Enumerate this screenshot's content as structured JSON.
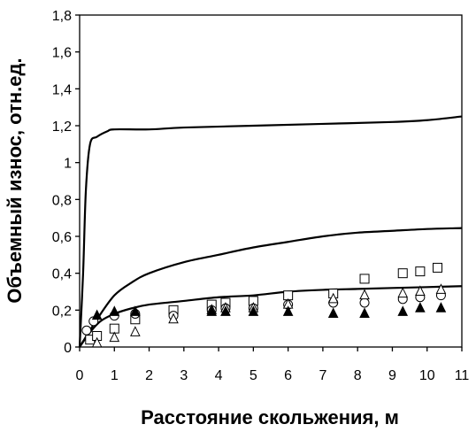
{
  "chart_data": {
    "type": "scatter",
    "xlabel": "Расстояние скольжения, м",
    "ylabel": "Объемный износ, отн.ед.",
    "xlim": [
      0,
      11
    ],
    "ylim": [
      0,
      1.8
    ],
    "x_ticks": [
      "0",
      "1",
      "2",
      "3",
      "4",
      "5",
      "6",
      "7",
      "8",
      "9",
      "10",
      "11"
    ],
    "y_ticks": [
      "0",
      "0,2",
      "0,4",
      "0,6",
      "0,8",
      "1",
      "1,2",
      "1,4",
      "1,6",
      "1,8"
    ],
    "grid": false,
    "legend": false,
    "series": [
      {
        "kind": "line",
        "points": [
          [
            0,
            0
          ],
          [
            0.1,
            0.4
          ],
          [
            0.18,
            0.85
          ],
          [
            0.3,
            1.1
          ],
          [
            0.5,
            1.14
          ],
          [
            0.8,
            1.17
          ],
          [
            1,
            1.18
          ],
          [
            2,
            1.18
          ],
          [
            3,
            1.19
          ],
          [
            5,
            1.2
          ],
          [
            7,
            1.21
          ],
          [
            9,
            1.22
          ],
          [
            10,
            1.23
          ],
          [
            11,
            1.25
          ]
        ]
      },
      {
        "kind": "line",
        "points": [
          [
            0,
            0
          ],
          [
            0.5,
            0.15
          ],
          [
            1,
            0.28
          ],
          [
            1.5,
            0.35
          ],
          [
            2,
            0.4
          ],
          [
            3,
            0.46
          ],
          [
            4,
            0.5
          ],
          [
            5,
            0.54
          ],
          [
            6,
            0.57
          ],
          [
            7,
            0.6
          ],
          [
            8,
            0.62
          ],
          [
            9,
            0.63
          ],
          [
            10,
            0.64
          ],
          [
            11,
            0.645
          ]
        ]
      },
      {
        "kind": "line",
        "points": [
          [
            0,
            0
          ],
          [
            0.3,
            0.08
          ],
          [
            0.6,
            0.14
          ],
          [
            1,
            0.18
          ],
          [
            1.5,
            0.21
          ],
          [
            2,
            0.23
          ],
          [
            3,
            0.25
          ],
          [
            4,
            0.27
          ],
          [
            5,
            0.28
          ],
          [
            6,
            0.3
          ],
          [
            7,
            0.31
          ],
          [
            8,
            0.315
          ],
          [
            9,
            0.32
          ],
          [
            10,
            0.325
          ],
          [
            11,
            0.33
          ]
        ]
      },
      {
        "kind": "markers",
        "marker": "square-open",
        "points": [
          [
            0.3,
            0.04
          ],
          [
            0.5,
            0.06
          ],
          [
            1,
            0.1
          ],
          [
            1.6,
            0.15
          ],
          [
            2.7,
            0.2
          ],
          [
            3.8,
            0.23
          ],
          [
            4.2,
            0.24
          ],
          [
            5,
            0.25
          ],
          [
            6,
            0.28
          ],
          [
            7.3,
            0.29
          ],
          [
            8.2,
            0.37
          ],
          [
            9.3,
            0.4
          ],
          [
            9.8,
            0.41
          ],
          [
            10.3,
            0.43
          ]
        ]
      },
      {
        "kind": "markers",
        "marker": "circle-open",
        "points": [
          [
            0.2,
            0.09
          ],
          [
            0.4,
            0.14
          ],
          [
            1,
            0.17
          ],
          [
            1.6,
            0.18
          ],
          [
            2.7,
            0.17
          ],
          [
            3.8,
            0.2
          ],
          [
            4.2,
            0.21
          ],
          [
            5,
            0.21
          ],
          [
            6,
            0.23
          ],
          [
            7.3,
            0.24
          ],
          [
            8.2,
            0.24
          ],
          [
            9.3,
            0.26
          ],
          [
            9.8,
            0.27
          ],
          [
            10.4,
            0.28
          ]
        ]
      },
      {
        "kind": "markers",
        "marker": "triangle-open",
        "points": [
          [
            0.5,
            0.02
          ],
          [
            1,
            0.05
          ],
          [
            1.6,
            0.08
          ],
          [
            2.7,
            0.15
          ],
          [
            3.8,
            0.2
          ],
          [
            4.2,
            0.21
          ],
          [
            5,
            0.21
          ],
          [
            6,
            0.23
          ],
          [
            7.3,
            0.26
          ],
          [
            8.2,
            0.28
          ],
          [
            9.3,
            0.29
          ],
          [
            9.8,
            0.3
          ],
          [
            10.4,
            0.31
          ]
        ]
      },
      {
        "kind": "markers",
        "marker": "triangle-filled",
        "points": [
          [
            0.5,
            0.17
          ],
          [
            1,
            0.19
          ],
          [
            1.6,
            0.19
          ],
          [
            3.8,
            0.19
          ],
          [
            4.2,
            0.19
          ],
          [
            5,
            0.19
          ],
          [
            6,
            0.19
          ],
          [
            7.3,
            0.18
          ],
          [
            8.2,
            0.18
          ],
          [
            9.3,
            0.19
          ],
          [
            9.8,
            0.21
          ],
          [
            10.4,
            0.21
          ]
        ]
      }
    ]
  }
}
